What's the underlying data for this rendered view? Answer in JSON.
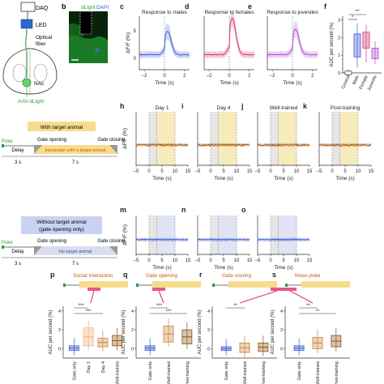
{
  "panel_labels": {
    "b": "b",
    "c": "c",
    "d": "d",
    "e": "e",
    "f": "f",
    "h": "h",
    "i": "i",
    "j": "j",
    "k": "k",
    "m": "m",
    "n": "n",
    "o": "o",
    "p": "p",
    "q": "q",
    "r": "r",
    "s": "s"
  },
  "setup": {
    "daq": "DAQ",
    "led": "LED",
    "fiber_line1": "Optical",
    "fiber_line2": "fiber",
    "nac": "NAc",
    "virus": "AAV-dLight"
  },
  "micrograph": {
    "label_dlight": "dLight",
    "label_dapi": "DAPI"
  },
  "colors": {
    "male": "#3f5bd6",
    "female": "#d6336c",
    "juvenile": "#b04ad0",
    "trained": "#a0520e",
    "without": "#3a58d8",
    "shade_yellow": "#f3e3a0",
    "shade_blue": "#d3d9f0",
    "protocol_yellow": "#f6dd8c",
    "protocol_blue": "#c9d2f2",
    "green": "#2e9d3a",
    "pink": "#e8558e"
  },
  "top_traces": {
    "ylabel": "ΔF/F (%)",
    "xlabel": "Time (s)",
    "xticks": [
      "–2",
      "0",
      "2"
    ],
    "yticks": [
      "5",
      "0"
    ],
    "panels": [
      {
        "title": "Response to males"
      },
      {
        "title": "Response to females"
      },
      {
        "title": "Response to juveniles"
      }
    ]
  },
  "auc_top": {
    "ylabel": "AUC per second (%)",
    "yticks": [
      "0",
      "1",
      "2",
      "3"
    ],
    "categories": [
      "Control",
      "Male",
      "Female",
      "Juvenile"
    ],
    "sig": [
      "**",
      "*"
    ]
  },
  "protocol_with": {
    "title": "With target animal",
    "nose_poke": "Poke",
    "gate_opening": "Gate opening",
    "gate_closing": "Gate closing",
    "delay": "Delay",
    "interaction": "Interaction with a target animal",
    "t1": "3 s",
    "t2": "7 s"
  },
  "protocol_without": {
    "title_line1": "Without target animal",
    "title_line2": "(gate opening only)",
    "nose_poke": "Poke",
    "gate_opening": "Gate opening",
    "gate_closing": "Gate closing",
    "delay": "Delay",
    "interaction": "No target animal",
    "t1": "3 s",
    "t2": "7 s"
  },
  "mid_traces": {
    "ylabel": "ΔF/F (%)",
    "xlabel": "Time (s)",
    "xticks": [
      "–5",
      "0",
      "5",
      "10",
      "15"
    ],
    "panels": [
      {
        "title": "Day 1"
      },
      {
        "title": "Day 4"
      },
      {
        "title": "Well-trained"
      },
      {
        "title": "Post-training"
      }
    ]
  },
  "low_traces": {
    "ylabel": "ΔF/F (%)",
    "xlabel": "Time (s)",
    "xticks": [
      "–5",
      "0",
      "5",
      "10",
      "15"
    ]
  },
  "bottom_boxes": {
    "ylabel": "AUC per second (%)",
    "yticks": [
      "0",
      "2",
      "4"
    ],
    "panels": [
      {
        "title": "Social interaction",
        "categories": [
          "Gate only",
          "Day 1",
          "Day 4",
          "Well-trained"
        ],
        "sig": [
          "***",
          "***"
        ]
      },
      {
        "title": "Gate opening",
        "categories": [
          "Gate only",
          "Well-trained",
          "Post-training"
        ],
        "sig": [
          "***",
          "***"
        ]
      },
      {
        "title": "Gate closing",
        "categories": [
          "Gate only",
          "Well-trained",
          "Post-training"
        ],
        "sig": [
          "**"
        ]
      },
      {
        "title": "Nose-poke",
        "categories": [
          "Gate only",
          "Well-trained",
          "Post-training"
        ],
        "sig": [
          "**",
          "**"
        ]
      }
    ]
  }
}
